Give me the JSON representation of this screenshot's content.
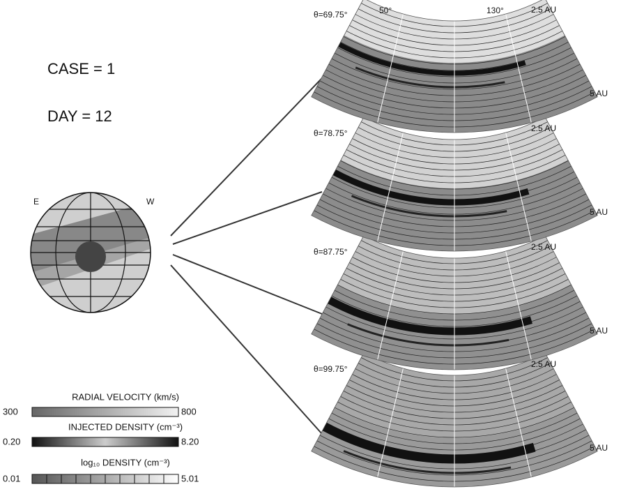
{
  "case_label": "CASE = 1",
  "day_label": "DAY = 12",
  "globe": {
    "east": "E",
    "west": "W"
  },
  "longitudes": [
    "50°",
    "130°"
  ],
  "panels": [
    {
      "theta": "θ=69.75°",
      "inner": "2.5 AU",
      "outer": "5 AU"
    },
    {
      "theta": "θ=78.75°",
      "inner": "2.5 AU",
      "outer": "5 AU"
    },
    {
      "theta": "θ=87.75°",
      "inner": "2.5 AU",
      "outer": "5 AU"
    },
    {
      "theta": "θ=99.75°",
      "inner": "2.5 AU",
      "outer": "5 AU"
    }
  ],
  "legend": [
    {
      "title": "RADIAL VELOCITY (km/s)",
      "min": "300",
      "max": "800"
    },
    {
      "title": "INJECTED DENSITY (cm⁻³)",
      "min": "0.20",
      "max": "8.20"
    },
    {
      "title": "log₁₀ DENSITY (cm⁻³)",
      "min": "0.01",
      "max": "5.01"
    }
  ]
}
